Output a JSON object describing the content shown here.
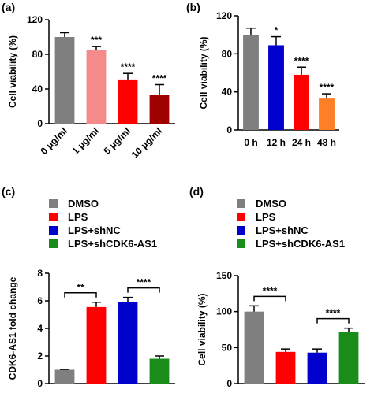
{
  "chart_data": [
    {
      "type": "bar",
      "panel_label": "(a)",
      "ylabel": "Cell viability (%)",
      "categories": [
        "0 μg/ml",
        "1 μg/ml",
        "5 μg/ml",
        "10 μg/ml"
      ],
      "values": [
        100,
        85,
        51,
        33
      ],
      "errors": [
        5,
        4,
        7,
        12
      ],
      "colors": [
        "#7f7f7f",
        "#f48a8a",
        "#ff0000",
        "#a00000"
      ],
      "significance": [
        null,
        "***",
        "****",
        "****"
      ],
      "ylim": [
        0,
        120
      ],
      "yticks": [
        0,
        40,
        80,
        120
      ]
    },
    {
      "type": "bar",
      "panel_label": "(b)",
      "ylabel": "Cell viability (%)",
      "categories": [
        "0 h",
        "12 h",
        "24 h",
        "48 h"
      ],
      "values": [
        100,
        89,
        58,
        33
      ],
      "errors": [
        7,
        9,
        8,
        5
      ],
      "colors": [
        "#7f7f7f",
        "#0000cc",
        "#ff0000",
        "#ff7f27"
      ],
      "significance": [
        null,
        "*",
        "****",
        "****"
      ],
      "ylim": [
        0,
        120
      ],
      "yticks": [
        0,
        40,
        80,
        120
      ]
    },
    {
      "type": "bar",
      "panel_label": "(c)",
      "ylabel": "CDK6-AS1 fold change",
      "categories": [
        "DMSO",
        "LPS",
        "LPS+shNC",
        "LPS+shCDK6-AS1"
      ],
      "values": [
        1.0,
        5.55,
        5.9,
        1.8
      ],
      "errors": [
        0.03,
        0.35,
        0.35,
        0.2
      ],
      "colors": [
        "#7f7f7f",
        "#ff0000",
        "#0000cc",
        "#1a8c1a"
      ],
      "legend": true,
      "comparisons": [
        {
          "label": "**",
          "pair": [
            0,
            1
          ]
        },
        {
          "label": "****",
          "pair": [
            2,
            3
          ]
        }
      ],
      "ylim": [
        0,
        8
      ],
      "yticks": [
        0,
        2,
        4,
        6,
        8
      ]
    },
    {
      "type": "bar",
      "panel_label": "(d)",
      "ylabel": "Cell viability (%)",
      "categories": [
        "DMSO",
        "LPS",
        "LPS+shNC",
        "LPS+shCDK6-AS1"
      ],
      "values": [
        100,
        44,
        43,
        72
      ],
      "errors": [
        8,
        4,
        5,
        5
      ],
      "colors": [
        "#7f7f7f",
        "#ff0000",
        "#0000cc",
        "#1a8c1a"
      ],
      "legend": true,
      "comparisons": [
        {
          "label": "****",
          "pair": [
            0,
            1
          ]
        },
        {
          "label": "****",
          "pair": [
            2,
            3
          ]
        }
      ],
      "ylim": [
        0,
        150
      ],
      "yticks": [
        0,
        50,
        100,
        150
      ]
    }
  ]
}
